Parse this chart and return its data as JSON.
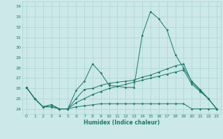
{
  "xlabel": "Humidex (Indice chaleur)",
  "ylabel": "",
  "background_color": "#cce8e8",
  "grid_color": "#aad4d4",
  "line_color": "#1a7a6a",
  "xlim": [
    -0.5,
    23.5
  ],
  "ylim": [
    23.5,
    34.5
  ],
  "yticks": [
    24,
    25,
    26,
    27,
    28,
    29,
    30,
    31,
    32,
    33,
    34
  ],
  "xticks": [
    0,
    1,
    2,
    3,
    4,
    5,
    6,
    7,
    8,
    9,
    10,
    11,
    12,
    13,
    14,
    15,
    16,
    17,
    18,
    19,
    20,
    21,
    22,
    23
  ],
  "series": [
    [
      26.1,
      25.0,
      24.2,
      24.4,
      24.0,
      24.0,
      25.8,
      26.7,
      28.4,
      27.5,
      26.3,
      26.2,
      26.1,
      26.1,
      31.2,
      33.5,
      32.8,
      31.7,
      29.3,
      28.0,
      26.7,
      25.9,
      25.0,
      24.0
    ],
    [
      26.1,
      25.0,
      24.2,
      24.4,
      24.0,
      24.0,
      25.0,
      25.9,
      26.0,
      26.3,
      26.5,
      26.6,
      26.7,
      26.8,
      27.1,
      27.3,
      27.6,
      27.9,
      28.2,
      28.4,
      26.6,
      25.8,
      25.0,
      24.0
    ],
    [
      26.1,
      25.0,
      24.2,
      24.2,
      24.0,
      24.0,
      24.6,
      25.0,
      25.4,
      25.7,
      26.0,
      26.2,
      26.4,
      26.6,
      26.8,
      27.0,
      27.2,
      27.4,
      27.6,
      27.8,
      26.4,
      25.7,
      25.0,
      24.0
    ],
    [
      26.1,
      25.0,
      24.2,
      24.2,
      24.0,
      24.0,
      24.2,
      24.3,
      24.4,
      24.5,
      24.5,
      24.5,
      24.5,
      24.5,
      24.5,
      24.5,
      24.5,
      24.5,
      24.5,
      24.5,
      24.0,
      24.0,
      24.0,
      24.0
    ]
  ],
  "tick_labelsize": 4.5,
  "xlabel_fontsize": 5.5,
  "linewidth": 0.7,
  "markersize": 1.5
}
